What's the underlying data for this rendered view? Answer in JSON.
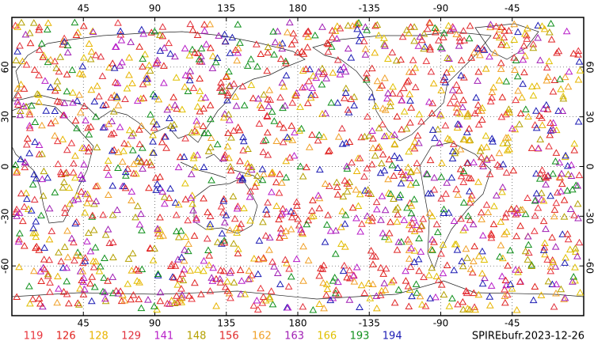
{
  "map": {
    "title": "SPIREbufr.2023-12-26",
    "lon_ticks": [
      45,
      90,
      135,
      180,
      -135,
      -90,
      -45
    ],
    "lat_ticks": [
      60,
      30,
      0,
      -30,
      -60
    ],
    "series": [
      {
        "name": "119",
        "color": "#e8343c"
      },
      {
        "name": "126",
        "color": "#e0201c"
      },
      {
        "name": "128",
        "color": "#e8b400"
      },
      {
        "name": "129",
        "color": "#e0303c"
      },
      {
        "name": "141",
        "color": "#b81ec8"
      },
      {
        "name": "148",
        "color": "#b4a000"
      },
      {
        "name": "156",
        "color": "#e02828"
      },
      {
        "name": "162",
        "color": "#f0a028"
      },
      {
        "name": "163",
        "color": "#a01eb4"
      },
      {
        "name": "166",
        "color": "#e0c000"
      },
      {
        "name": "193",
        "color": "#10901c"
      },
      {
        "name": "194",
        "color": "#1c1cb4"
      }
    ]
  }
}
